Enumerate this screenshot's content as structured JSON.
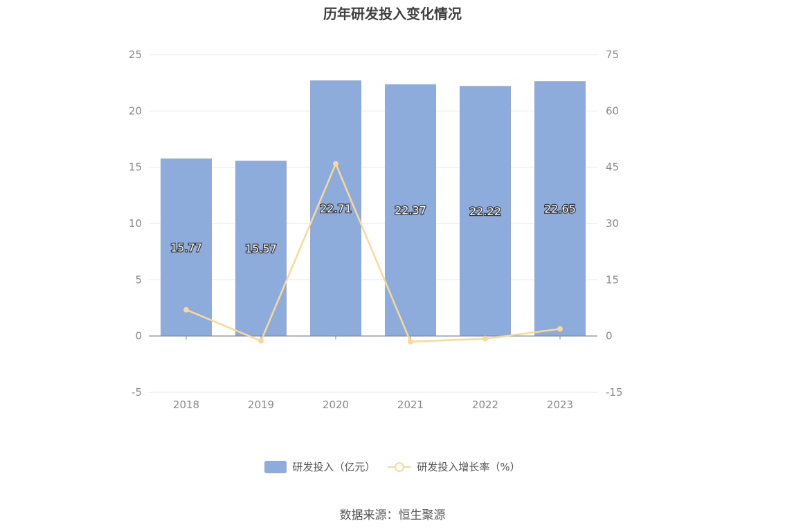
{
  "title": "历年研发投入变化情况",
  "source_text": "数据来源：恒生聚源",
  "colors": {
    "bar": "#8eacdb",
    "line": "#f7d99a",
    "grid": "#e3e6f3",
    "axis": "#888888"
  },
  "legend": {
    "bar_label": "研发投入（亿元）",
    "line_label": "研发投入增长率（%）"
  },
  "chart_data": {
    "type": "bar",
    "categories": [
      "2018",
      "2019",
      "2020",
      "2021",
      "2022",
      "2023"
    ],
    "series": [
      {
        "name": "研发投入（亿元）",
        "type": "bar",
        "axis": "left",
        "values": [
          15.77,
          15.57,
          22.71,
          22.37,
          22.22,
          22.65
        ]
      },
      {
        "name": "研发投入增长率（%）",
        "type": "line",
        "axis": "right",
        "values": [
          7.0,
          -1.3,
          45.9,
          -1.5,
          -0.7,
          1.9
        ]
      }
    ],
    "y_left": {
      "range": [
        -5,
        25
      ],
      "ticks": [
        -5,
        0,
        5,
        10,
        15,
        20,
        25
      ]
    },
    "y_right": {
      "range": [
        -15,
        75
      ],
      "ticks": [
        -15,
        0,
        15,
        30,
        45,
        60,
        75
      ]
    },
    "grid": true,
    "legend_position": "bottom"
  }
}
